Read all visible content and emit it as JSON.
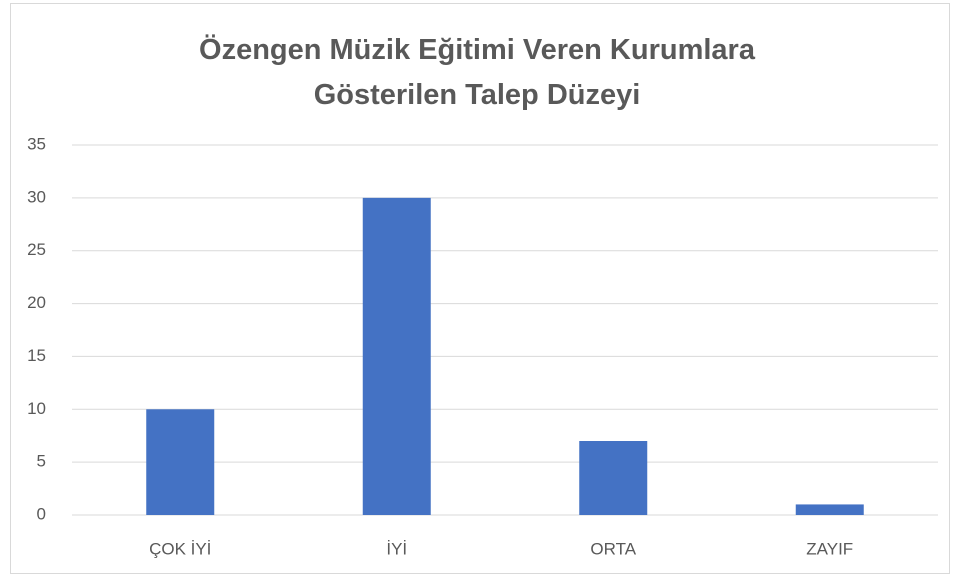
{
  "chart_data": {
    "type": "bar",
    "title": "Özengen Müzik Eğitimi Veren Kurumlara Gösterilen Talep Düzeyi",
    "categories": [
      "ÇOK İYİ",
      "İYİ",
      "ORTA",
      "ZAYIF"
    ],
    "values": [
      10,
      30,
      7,
      1
    ],
    "color": "#4472c4",
    "ylim": [
      0,
      35
    ],
    "yticks": [
      0,
      5,
      10,
      15,
      20,
      25,
      30,
      35
    ],
    "grid": true
  }
}
